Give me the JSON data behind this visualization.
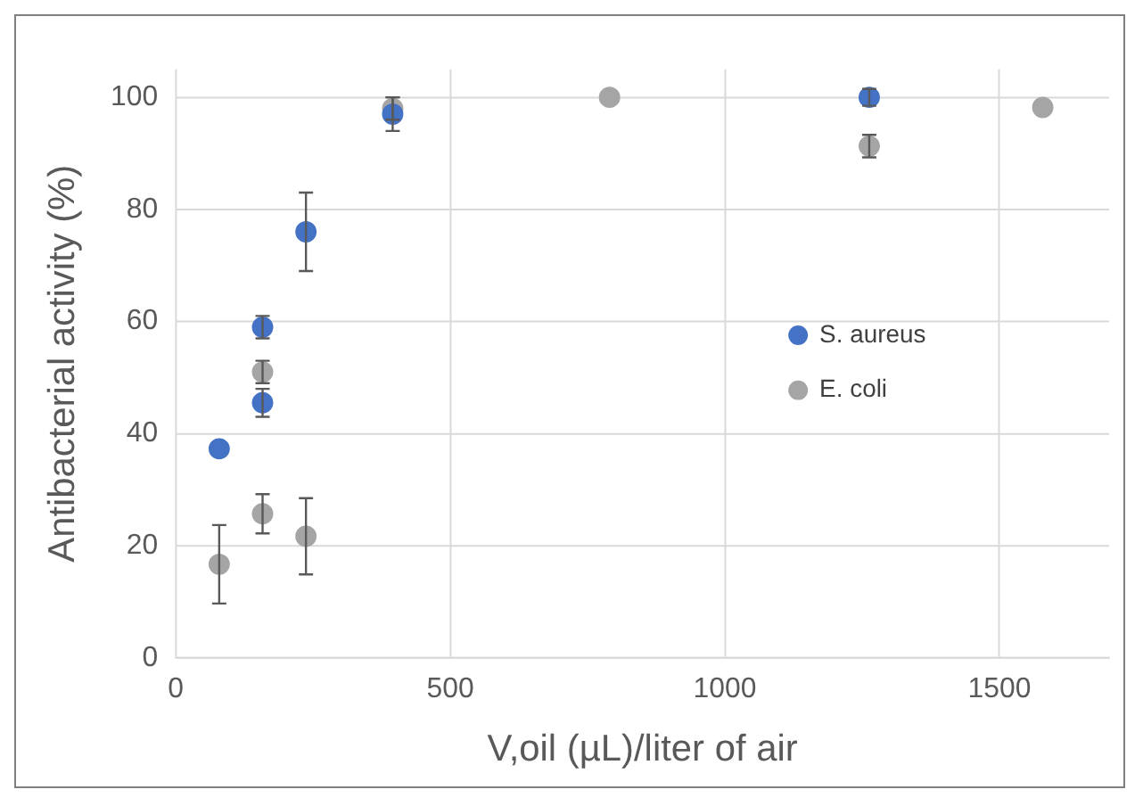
{
  "chart_data": {
    "type": "scatter",
    "xlabel": "V,oil (µL)/liter of air",
    "ylabel": "Antibacterial activity (%)",
    "xlim": [
      0,
      1700
    ],
    "xticks": [
      0,
      500,
      1000,
      1500
    ],
    "ylim": [
      0,
      105
    ],
    "yticks": [
      0,
      20,
      40,
      60,
      80,
      100
    ],
    "grid": true,
    "legend": "center right",
    "marker": "circle",
    "series": [
      {
        "name": "S. aureus",
        "color": "#4472c4",
        "x": [
          79,
          158,
          158,
          237,
          395,
          1263
        ],
        "values": [
          37.3,
          59,
          45.5,
          76,
          97,
          100
        ],
        "errors": [
          null,
          2,
          2.5,
          7,
          3,
          1.5
        ]
      },
      {
        "name": "E. coli",
        "color": "#a5a5a5",
        "x": [
          79,
          158,
          158,
          237,
          395,
          790,
          1263,
          1579
        ],
        "values": [
          16.7,
          51,
          25.7,
          21.7,
          98,
          100,
          91.3,
          98.2
        ],
        "errors": [
          7,
          2,
          3.5,
          6.8,
          2,
          null,
          2,
          null
        ]
      }
    ]
  }
}
